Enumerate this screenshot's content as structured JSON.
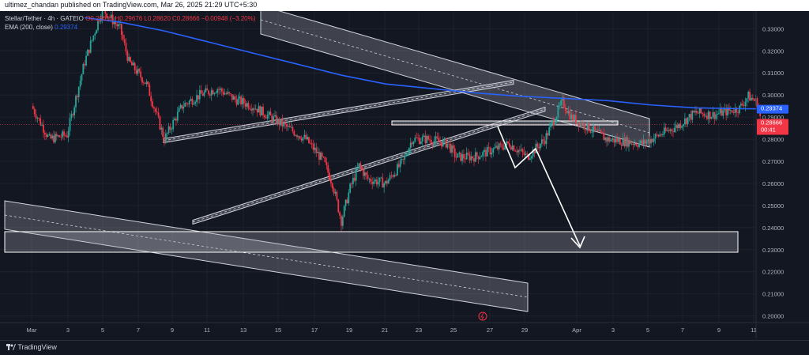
{
  "header": {
    "published": "ultimez_chandan published on TradingView.com, Mar 26, 2025 21:29 UTC+5:30"
  },
  "legend": {
    "symbol": "Stellar/Tether · 4h · GATEIO",
    "ohlc": "O0.29617 H0.29676 L0.28620 C0.28666 −0.00948 (−3.20%)",
    "ema_label": "EMA (200, close)",
    "ema_value": "0.29374"
  },
  "footer": {
    "brand": "TradingView"
  },
  "colors": {
    "up": "#26a69a",
    "down": "#f23645",
    "ema": "#2962ff",
    "background": "#131722"
  },
  "chart_data": {
    "type": "candlestick",
    "symbol": "Stellar/Tether",
    "timeframe": "4h",
    "exchange": "GATEIO",
    "x_ticks": [
      "Mar",
      "3",
      "5",
      "7",
      "9",
      "11",
      "13",
      "15",
      "17",
      "19",
      "21",
      "23",
      "25",
      "27",
      "29",
      "Apr",
      "3",
      "5",
      "7",
      "9",
      "11"
    ],
    "y_ticks": [
      "0.33000",
      "0.32000",
      "0.31000",
      "0.30000",
      "0.29000",
      "0.28000",
      "0.27000",
      "0.26000",
      "0.25000",
      "0.24000",
      "0.23000",
      "0.22000",
      "0.21000",
      "0.20000"
    ],
    "ylim": [
      0.197,
      0.338
    ],
    "price_path": [
      [
        0,
        0.295
      ],
      [
        2,
        0.28
      ],
      [
        4,
        0.282
      ],
      [
        6,
        0.315
      ],
      [
        8,
        0.339
      ],
      [
        10,
        0.33
      ],
      [
        11,
        0.315
      ],
      [
        13,
        0.305
      ],
      [
        15,
        0.28
      ],
      [
        17,
        0.295
      ],
      [
        19,
        0.3
      ],
      [
        21,
        0.303
      ],
      [
        23,
        0.298
      ],
      [
        25,
        0.295
      ],
      [
        27,
        0.29
      ],
      [
        29,
        0.285
      ],
      [
        31,
        0.28
      ],
      [
        33,
        0.27
      ],
      [
        34,
        0.26
      ],
      [
        35,
        0.243
      ],
      [
        36,
        0.258
      ],
      [
        37,
        0.268
      ],
      [
        38,
        0.262
      ],
      [
        40,
        0.26
      ],
      [
        42,
        0.27
      ],
      [
        43,
        0.28
      ],
      [
        45,
        0.28
      ],
      [
        47,
        0.278
      ],
      [
        48,
        0.272
      ],
      [
        50,
        0.272
      ],
      [
        52,
        0.275
      ],
      [
        54,
        0.278
      ],
      [
        56,
        0.272
      ],
      [
        58,
        0.28
      ],
      [
        60,
        0.297
      ],
      [
        61,
        0.29
      ],
      [
        63,
        0.285
      ],
      [
        65,
        0.28
      ],
      [
        67,
        0.279
      ],
      [
        69,
        0.278
      ],
      [
        71,
        0.282
      ],
      [
        73,
        0.286
      ],
      [
        75,
        0.292
      ],
      [
        77,
        0.291
      ],
      [
        79,
        0.293
      ],
      [
        80,
        0.294
      ],
      [
        81,
        0.2995
      ],
      [
        82,
        0.2966
      ],
      [
        82.5,
        0.2866
      ]
    ],
    "ema200_path": [
      [
        6,
        0.335
      ],
      [
        10,
        0.333
      ],
      [
        15,
        0.329
      ],
      [
        20,
        0.324
      ],
      [
        25,
        0.319
      ],
      [
        30,
        0.314
      ],
      [
        35,
        0.309
      ],
      [
        40,
        0.305
      ],
      [
        45,
        0.303
      ],
      [
        50,
        0.301
      ],
      [
        55,
        0.2995
      ],
      [
        60,
        0.2985
      ],
      [
        65,
        0.2975
      ],
      [
        70,
        0.2955
      ],
      [
        75,
        0.2942
      ],
      [
        80,
        0.2938
      ],
      [
        82.5,
        0.29374
      ]
    ],
    "last_price": "0.28666",
    "last_price_countdown": "00:41",
    "ema_last": "0.29374",
    "current_price_level": 0.28666,
    "annotations": [
      {
        "kind": "descending-channel",
        "label": "upper"
      },
      {
        "kind": "descending-channel",
        "label": "lower"
      },
      {
        "kind": "rising-wedge",
        "label": "rising channel"
      },
      {
        "kind": "horizontal-zone",
        "from": 0.2865,
        "to": 0.287
      },
      {
        "kind": "support-zone",
        "from": 0.229,
        "to": 0.238
      },
      {
        "kind": "projection-arrow",
        "path": [
          [
            82.5,
            0.2865
          ],
          [
            87.5,
            0.269
          ],
          [
            91.5,
            0.282
          ],
          [
            98.5,
            0.23
          ]
        ]
      }
    ]
  }
}
